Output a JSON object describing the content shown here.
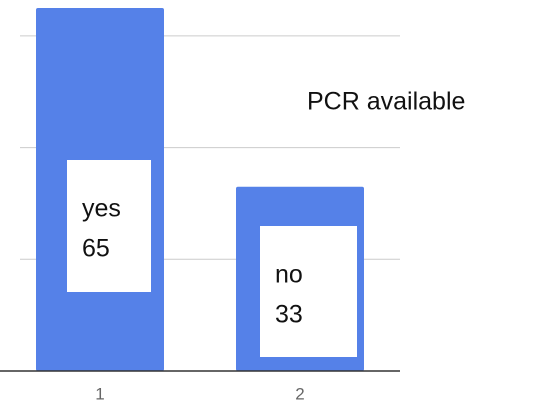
{
  "chart_data": {
    "type": "bar",
    "title": "PCR available",
    "categories": [
      "1",
      "2"
    ],
    "values": [
      65,
      33
    ],
    "labels": [
      "yes",
      "no"
    ],
    "color": "#5581e8",
    "ylim": [
      0,
      66
    ],
    "yticks": [
      0,
      20,
      40,
      60
    ],
    "grid": true
  }
}
